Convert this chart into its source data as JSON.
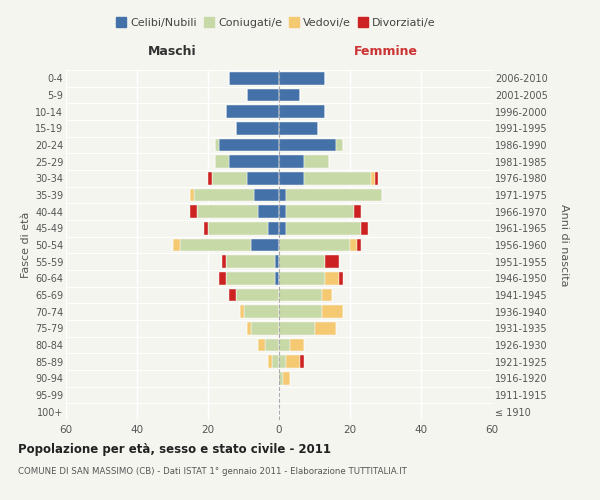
{
  "age_groups": [
    "100+",
    "95-99",
    "90-94",
    "85-89",
    "80-84",
    "75-79",
    "70-74",
    "65-69",
    "60-64",
    "55-59",
    "50-54",
    "45-49",
    "40-44",
    "35-39",
    "30-34",
    "25-29",
    "20-24",
    "15-19",
    "10-14",
    "5-9",
    "0-4"
  ],
  "birth_years": [
    "≤ 1910",
    "1911-1915",
    "1916-1920",
    "1921-1925",
    "1926-1930",
    "1931-1935",
    "1936-1940",
    "1941-1945",
    "1946-1950",
    "1951-1955",
    "1956-1960",
    "1961-1965",
    "1966-1970",
    "1971-1975",
    "1976-1980",
    "1981-1985",
    "1986-1990",
    "1991-1995",
    "1996-2000",
    "2001-2005",
    "2006-2010"
  ],
  "colors": {
    "celibi": "#4472a8",
    "coniugati": "#c8d9a8",
    "vedovi": "#f5c872",
    "divorziati": "#cc2222"
  },
  "males": {
    "celibi": [
      0,
      0,
      0,
      0,
      0,
      0,
      0,
      0,
      1,
      1,
      8,
      3,
      6,
      7,
      9,
      14,
      17,
      12,
      15,
      9,
      14
    ],
    "coniugati": [
      0,
      0,
      0,
      2,
      4,
      8,
      10,
      12,
      14,
      14,
      20,
      17,
      17,
      17,
      10,
      4,
      1,
      0,
      0,
      0,
      0
    ],
    "vedovi": [
      0,
      0,
      0,
      1,
      2,
      1,
      1,
      0,
      0,
      0,
      2,
      0,
      0,
      1,
      0,
      0,
      0,
      0,
      0,
      0,
      0
    ],
    "divorziati": [
      0,
      0,
      0,
      0,
      0,
      0,
      0,
      2,
      2,
      1,
      0,
      1,
      2,
      0,
      1,
      0,
      0,
      0,
      0,
      0,
      0
    ]
  },
  "females": {
    "celibi": [
      0,
      0,
      0,
      0,
      0,
      0,
      0,
      0,
      0,
      0,
      0,
      2,
      2,
      2,
      7,
      7,
      16,
      11,
      13,
      6,
      13
    ],
    "coniugati": [
      0,
      0,
      1,
      2,
      3,
      10,
      12,
      12,
      13,
      13,
      20,
      21,
      19,
      27,
      19,
      7,
      2,
      0,
      0,
      0,
      0
    ],
    "vedovi": [
      0,
      0,
      2,
      4,
      4,
      6,
      6,
      3,
      4,
      0,
      2,
      0,
      0,
      0,
      1,
      0,
      0,
      0,
      0,
      0,
      0
    ],
    "divorziati": [
      0,
      0,
      0,
      1,
      0,
      0,
      0,
      0,
      1,
      4,
      1,
      2,
      2,
      0,
      1,
      0,
      0,
      0,
      0,
      0,
      0
    ]
  },
  "title": "Popolazione per età, sesso e stato civile - 2011",
  "subtitle": "COMUNE DI SAN MASSIMO (CB) - Dati ISTAT 1° gennaio 2011 - Elaborazione TUTTITALIA.IT",
  "xlabel_left": "Maschi",
  "xlabel_right": "Femmine",
  "ylabel_left": "Fasce di età",
  "ylabel_right": "Anni di nascita",
  "xlim": 60,
  "legend_labels": [
    "Celibi/Nubili",
    "Coniugati/e",
    "Vedovi/e",
    "Divorziati/e"
  ],
  "bg_color": "#f5f5f0"
}
